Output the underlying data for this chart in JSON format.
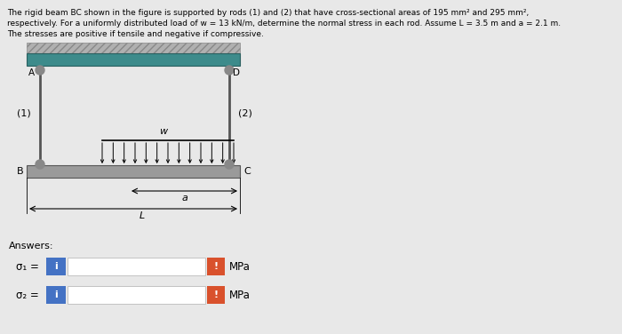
{
  "title_lines": [
    "The rigid beam BC shown in the figure is supported by rods (1) and (2) that have cross-sectional areas of 195 mm² and 295 mm²,",
    "respectively. For a uniformly distributed load of w = 13 kN/m, determine the normal stress in each rod. Assume L = 3.5 m and a = 2.1 m.",
    "The stresses are positive if tensile and negative if compressive."
  ],
  "answers_label": "Answers:",
  "sigma1_label": "σ₁ =",
  "sigma2_label": "σ₂ =",
  "mpa_label": "MPa",
  "blue_color": "#4472C4",
  "orange_red": "#D9512C",
  "bg_color": "#E8E8E8",
  "teal_color": "#3D8B8B",
  "beam_color": "#9A9A9A",
  "label_A": "A",
  "label_B": "B",
  "label_C": "C",
  "label_D": "D",
  "label_1": "(1)",
  "label_2": "(2)",
  "label_w": "w",
  "label_a": "a",
  "label_L": "L"
}
